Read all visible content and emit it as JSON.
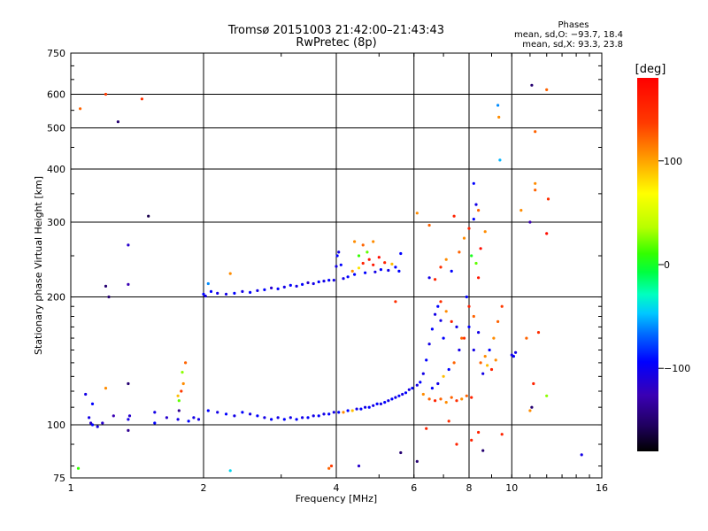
{
  "title": {
    "line1": "Tromsø 20151003 21:42:00–21:43:43",
    "line2": "RwPretec (8p)"
  },
  "phase_stats": {
    "header": "Phases",
    "o_line": "mean, sd,O:  −93.7, 18.4",
    "x_line": "mean, sd,X:  93.3, 23.8"
  },
  "colorbar": {
    "label": "[deg]",
    "ticks": [
      {
        "value": 100,
        "label": "100"
      },
      {
        "value": 0,
        "label": "0"
      },
      {
        "value": -100,
        "label": "−100"
      }
    ],
    "range": [
      -180,
      180
    ]
  },
  "chart_data": {
    "type": "scatter",
    "title": "Tromsø 20151003 21:42:00–21:43:43",
    "subtitle": "RwPretec (8p)",
    "xlabel": "Frequency [MHz]",
    "ylabel": "Stationary phase Virtual Height [km]",
    "x_scale": "log",
    "y_scale": "log",
    "xlim": [
      1,
      16
    ],
    "ylim": [
      75,
      750
    ],
    "x_ticks": [
      {
        "value": 1,
        "label": "1"
      },
      {
        "value": 2,
        "label": "2"
      },
      {
        "value": 4,
        "label": "4"
      },
      {
        "value": 6,
        "label": "6"
      },
      {
        "value": 8,
        "label": "8"
      },
      {
        "value": 10,
        "label": "10"
      },
      {
        "value": 16,
        "label": "16"
      }
    ],
    "y_ticks": [
      {
        "value": 75,
        "label": "75"
      },
      {
        "value": 100,
        "label": "100"
      },
      {
        "value": 200,
        "label": "200"
      },
      {
        "value": 300,
        "label": "300"
      },
      {
        "value": 400,
        "label": "400"
      },
      {
        "value": 500,
        "label": "500"
      },
      {
        "value": 600,
        "label": "600"
      },
      {
        "value": 750,
        "label": "750"
      }
    ],
    "x_gridlines": [
      2,
      4,
      6,
      8,
      10
    ],
    "y_gridlines": [
      100,
      200,
      300,
      400,
      500,
      600
    ],
    "grid": true,
    "color_variable": "phase",
    "color_unit": "deg",
    "points": [
      {
        "x": 1.05,
        "y": 555,
        "c": 120
      },
      {
        "x": 1.2,
        "y": 600,
        "c": 130
      },
      {
        "x": 1.28,
        "y": 517,
        "c": -150
      },
      {
        "x": 1.45,
        "y": 585,
        "c": 140
      },
      {
        "x": 1.5,
        "y": 310,
        "c": -160
      },
      {
        "x": 1.35,
        "y": 265,
        "c": -120
      },
      {
        "x": 1.2,
        "y": 212,
        "c": -150
      },
      {
        "x": 1.22,
        "y": 200,
        "c": -150
      },
      {
        "x": 1.35,
        "y": 214,
        "c": -130
      },
      {
        "x": 1.08,
        "y": 118,
        "c": -110
      },
      {
        "x": 1.12,
        "y": 112,
        "c": -100
      },
      {
        "x": 1.1,
        "y": 104,
        "c": -110
      },
      {
        "x": 1.11,
        "y": 101,
        "c": -120
      },
      {
        "x": 1.12,
        "y": 100,
        "c": -100
      },
      {
        "x": 1.15,
        "y": 99,
        "c": -110
      },
      {
        "x": 1.18,
        "y": 101,
        "c": -120
      },
      {
        "x": 1.25,
        "y": 105,
        "c": -130
      },
      {
        "x": 1.35,
        "y": 103,
        "c": -110
      },
      {
        "x": 1.36,
        "y": 105,
        "c": -120
      },
      {
        "x": 1.35,
        "y": 97,
        "c": -140
      },
      {
        "x": 1.35,
        "y": 125,
        "c": -150
      },
      {
        "x": 1.2,
        "y": 122,
        "c": 110
      },
      {
        "x": 1.04,
        "y": 79,
        "c": 20
      },
      {
        "x": 1.55,
        "y": 101,
        "c": -100
      },
      {
        "x": 1.75,
        "y": 117,
        "c": 100
      },
      {
        "x": 1.76,
        "y": 114,
        "c": 30
      },
      {
        "x": 1.78,
        "y": 120,
        "c": 130
      },
      {
        "x": 1.8,
        "y": 125,
        "c": 110
      },
      {
        "x": 1.82,
        "y": 140,
        "c": 120
      },
      {
        "x": 1.79,
        "y": 133,
        "c": 40
      },
      {
        "x": 1.76,
        "y": 108,
        "c": -140
      },
      {
        "x": 1.9,
        "y": 104,
        "c": -110
      },
      {
        "x": 2.0,
        "y": 203,
        "c": -100
      },
      {
        "x": 2.02,
        "y": 201,
        "c": -110
      },
      {
        "x": 2.05,
        "y": 215,
        "c": -60
      },
      {
        "x": 2.08,
        "y": 206,
        "c": -100
      },
      {
        "x": 2.15,
        "y": 204,
        "c": -110
      },
      {
        "x": 2.25,
        "y": 203,
        "c": -110
      },
      {
        "x": 2.3,
        "y": 227,
        "c": 110
      },
      {
        "x": 2.35,
        "y": 204,
        "c": -100
      },
      {
        "x": 2.45,
        "y": 206,
        "c": -110
      },
      {
        "x": 2.55,
        "y": 205,
        "c": -100
      },
      {
        "x": 2.65,
        "y": 207,
        "c": -110
      },
      {
        "x": 2.75,
        "y": 208,
        "c": -100
      },
      {
        "x": 2.85,
        "y": 210,
        "c": -120
      },
      {
        "x": 2.95,
        "y": 209,
        "c": -100
      },
      {
        "x": 3.05,
        "y": 211,
        "c": -110
      },
      {
        "x": 3.15,
        "y": 213,
        "c": -100
      },
      {
        "x": 3.25,
        "y": 212,
        "c": -110
      },
      {
        "x": 3.35,
        "y": 214,
        "c": -100
      },
      {
        "x": 3.45,
        "y": 216,
        "c": -120
      },
      {
        "x": 3.55,
        "y": 215,
        "c": -110
      },
      {
        "x": 3.65,
        "y": 217,
        "c": -100
      },
      {
        "x": 3.75,
        "y": 218,
        "c": -110
      },
      {
        "x": 3.85,
        "y": 219,
        "c": -100
      },
      {
        "x": 3.95,
        "y": 219,
        "c": -110
      },
      {
        "x": 4.0,
        "y": 236,
        "c": -110
      },
      {
        "x": 4.02,
        "y": 250,
        "c": -100
      },
      {
        "x": 4.05,
        "y": 255,
        "c": -110
      },
      {
        "x": 4.1,
        "y": 238,
        "c": -100
      },
      {
        "x": 4.15,
        "y": 221,
        "c": -110
      },
      {
        "x": 4.25,
        "y": 223,
        "c": -100
      },
      {
        "x": 4.35,
        "y": 230,
        "c": 110
      },
      {
        "x": 4.4,
        "y": 226,
        "c": -100
      },
      {
        "x": 4.5,
        "y": 234,
        "c": 90
      },
      {
        "x": 4.6,
        "y": 240,
        "c": 150
      },
      {
        "x": 4.65,
        "y": 228,
        "c": -100
      },
      {
        "x": 4.75,
        "y": 245,
        "c": 160
      },
      {
        "x": 4.85,
        "y": 238,
        "c": 160
      },
      {
        "x": 4.9,
        "y": 229,
        "c": -110
      },
      {
        "x": 5.0,
        "y": 248,
        "c": 170
      },
      {
        "x": 5.05,
        "y": 232,
        "c": -100
      },
      {
        "x": 5.15,
        "y": 241,
        "c": 150
      },
      {
        "x": 5.25,
        "y": 231,
        "c": -110
      },
      {
        "x": 5.35,
        "y": 239,
        "c": 100
      },
      {
        "x": 5.45,
        "y": 235,
        "c": -100
      },
      {
        "x": 5.55,
        "y": 230,
        "c": -100
      },
      {
        "x": 5.6,
        "y": 253,
        "c": -100
      },
      {
        "x": 4.5,
        "y": 250,
        "c": 20
      },
      {
        "x": 4.6,
        "y": 265,
        "c": 120
      },
      {
        "x": 4.7,
        "y": 255,
        "c": 30
      },
      {
        "x": 4.85,
        "y": 270,
        "c": 110
      },
      {
        "x": 5.45,
        "y": 195,
        "c": 140
      },
      {
        "x": 4.4,
        "y": 270,
        "c": 110
      },
      {
        "x": 1.55,
        "y": 107,
        "c": -110
      },
      {
        "x": 1.65,
        "y": 104,
        "c": -120
      },
      {
        "x": 1.75,
        "y": 103,
        "c": -110
      },
      {
        "x": 1.85,
        "y": 102,
        "c": -100
      },
      {
        "x": 1.95,
        "y": 103,
        "c": -110
      },
      {
        "x": 2.05,
        "y": 108,
        "c": -100
      },
      {
        "x": 2.15,
        "y": 107,
        "c": -110
      },
      {
        "x": 2.25,
        "y": 106,
        "c": -100
      },
      {
        "x": 2.35,
        "y": 105,
        "c": -110
      },
      {
        "x": 2.45,
        "y": 107,
        "c": -100
      },
      {
        "x": 2.55,
        "y": 106,
        "c": -110
      },
      {
        "x": 2.65,
        "y": 105,
        "c": -100
      },
      {
        "x": 2.75,
        "y": 104,
        "c": -110
      },
      {
        "x": 2.85,
        "y": 103,
        "c": -100
      },
      {
        "x": 2.95,
        "y": 104,
        "c": -110
      },
      {
        "x": 3.05,
        "y": 103,
        "c": -100
      },
      {
        "x": 3.15,
        "y": 104,
        "c": -110
      },
      {
        "x": 3.25,
        "y": 103,
        "c": -100
      },
      {
        "x": 3.35,
        "y": 104,
        "c": -110
      },
      {
        "x": 3.45,
        "y": 104,
        "c": -100
      },
      {
        "x": 3.55,
        "y": 105,
        "c": -110
      },
      {
        "x": 3.65,
        "y": 105,
        "c": -100
      },
      {
        "x": 3.75,
        "y": 106,
        "c": -110
      },
      {
        "x": 3.85,
        "y": 106,
        "c": -100
      },
      {
        "x": 3.95,
        "y": 107,
        "c": -110
      },
      {
        "x": 4.05,
        "y": 107,
        "c": -100
      },
      {
        "x": 4.15,
        "y": 107,
        "c": 110
      },
      {
        "x": 4.25,
        "y": 108,
        "c": -100
      },
      {
        "x": 4.35,
        "y": 108,
        "c": 100
      },
      {
        "x": 4.45,
        "y": 109,
        "c": -110
      },
      {
        "x": 4.55,
        "y": 109,
        "c": -100
      },
      {
        "x": 4.65,
        "y": 110,
        "c": -110
      },
      {
        "x": 4.75,
        "y": 110,
        "c": -100
      },
      {
        "x": 4.85,
        "y": 111,
        "c": -110
      },
      {
        "x": 4.95,
        "y": 112,
        "c": -100
      },
      {
        "x": 5.05,
        "y": 112,
        "c": -110
      },
      {
        "x": 5.15,
        "y": 113,
        "c": -100
      },
      {
        "x": 5.25,
        "y": 114,
        "c": -110
      },
      {
        "x": 5.35,
        "y": 115,
        "c": -100
      },
      {
        "x": 5.45,
        "y": 116,
        "c": -110
      },
      {
        "x": 5.55,
        "y": 117,
        "c": -100
      },
      {
        "x": 5.65,
        "y": 118,
        "c": -110
      },
      {
        "x": 5.75,
        "y": 119,
        "c": -100
      },
      {
        "x": 5.85,
        "y": 121,
        "c": -110
      },
      {
        "x": 5.95,
        "y": 122,
        "c": -100
      },
      {
        "x": 6.1,
        "y": 124,
        "c": -110
      },
      {
        "x": 6.2,
        "y": 126,
        "c": -100
      },
      {
        "x": 6.3,
        "y": 132,
        "c": -110
      },
      {
        "x": 6.4,
        "y": 142,
        "c": -100
      },
      {
        "x": 6.5,
        "y": 155,
        "c": -110
      },
      {
        "x": 6.6,
        "y": 168,
        "c": -100
      },
      {
        "x": 6.7,
        "y": 182,
        "c": -110
      },
      {
        "x": 6.8,
        "y": 190,
        "c": -100
      },
      {
        "x": 6.9,
        "y": 176,
        "c": -110
      },
      {
        "x": 7.0,
        "y": 160,
        "c": -100
      },
      {
        "x": 6.3,
        "y": 118,
        "c": 110
      },
      {
        "x": 6.5,
        "y": 115,
        "c": 120
      },
      {
        "x": 6.7,
        "y": 114,
        "c": 150
      },
      {
        "x": 6.9,
        "y": 115,
        "c": 120
      },
      {
        "x": 7.1,
        "y": 113,
        "c": 110
      },
      {
        "x": 7.3,
        "y": 116,
        "c": 120
      },
      {
        "x": 7.5,
        "y": 114,
        "c": 140
      },
      {
        "x": 7.7,
        "y": 115,
        "c": 110
      },
      {
        "x": 7.9,
        "y": 117,
        "c": 120
      },
      {
        "x": 8.1,
        "y": 116,
        "c": 150
      },
      {
        "x": 6.6,
        "y": 122,
        "c": -100
      },
      {
        "x": 6.8,
        "y": 125,
        "c": -110
      },
      {
        "x": 7.0,
        "y": 130,
        "c": 100
      },
      {
        "x": 7.2,
        "y": 135,
        "c": -100
      },
      {
        "x": 7.4,
        "y": 140,
        "c": 120
      },
      {
        "x": 7.6,
        "y": 150,
        "c": -110
      },
      {
        "x": 7.8,
        "y": 160,
        "c": 140
      },
      {
        "x": 8.0,
        "y": 170,
        "c": -100
      },
      {
        "x": 8.2,
        "y": 180,
        "c": 120
      },
      {
        "x": 8.4,
        "y": 165,
        "c": -110
      },
      {
        "x": 6.9,
        "y": 195,
        "c": 140
      },
      {
        "x": 7.1,
        "y": 185,
        "c": 110
      },
      {
        "x": 7.3,
        "y": 175,
        "c": 150
      },
      {
        "x": 7.5,
        "y": 170,
        "c": -110
      },
      {
        "x": 7.7,
        "y": 160,
        "c": 120
      },
      {
        "x": 7.9,
        "y": 200,
        "c": -100
      },
      {
        "x": 8.0,
        "y": 190,
        "c": 150
      },
      {
        "x": 8.2,
        "y": 150,
        "c": -110
      },
      {
        "x": 8.5,
        "y": 140,
        "c": 120
      },
      {
        "x": 8.7,
        "y": 145,
        "c": 110
      },
      {
        "x": 8.9,
        "y": 150,
        "c": -100
      },
      {
        "x": 9.1,
        "y": 160,
        "c": 110
      },
      {
        "x": 9.3,
        "y": 175,
        "c": 120
      },
      {
        "x": 9.5,
        "y": 190,
        "c": 130
      },
      {
        "x": 8.6,
        "y": 132,
        "c": -110
      },
      {
        "x": 8.8,
        "y": 138,
        "c": 100
      },
      {
        "x": 9.0,
        "y": 135,
        "c": 150
      },
      {
        "x": 9.2,
        "y": 142,
        "c": 110
      },
      {
        "x": 10.1,
        "y": 145,
        "c": -100
      },
      {
        "x": 10.2,
        "y": 148,
        "c": -110
      },
      {
        "x": 6.5,
        "y": 222,
        "c": -110
      },
      {
        "x": 6.7,
        "y": 220,
        "c": 150
      },
      {
        "x": 6.9,
        "y": 235,
        "c": 140
      },
      {
        "x": 7.1,
        "y": 245,
        "c": 110
      },
      {
        "x": 7.3,
        "y": 230,
        "c": -100
      },
      {
        "x": 7.6,
        "y": 255,
        "c": 120
      },
      {
        "x": 7.8,
        "y": 275,
        "c": 110
      },
      {
        "x": 8.0,
        "y": 290,
        "c": 150
      },
      {
        "x": 8.2,
        "y": 305,
        "c": -100
      },
      {
        "x": 8.3,
        "y": 330,
        "c": -110
      },
      {
        "x": 8.2,
        "y": 370,
        "c": -100
      },
      {
        "x": 8.4,
        "y": 320,
        "c": 120
      },
      {
        "x": 8.1,
        "y": 250,
        "c": 10
      },
      {
        "x": 8.3,
        "y": 240,
        "c": 30
      },
      {
        "x": 8.5,
        "y": 260,
        "c": 170
      },
      {
        "x": 8.7,
        "y": 285,
        "c": 110
      },
      {
        "x": 8.4,
        "y": 222,
        "c": 160
      },
      {
        "x": 7.4,
        "y": 310,
        "c": 150
      },
      {
        "x": 6.1,
        "y": 315,
        "c": 110
      },
      {
        "x": 6.5,
        "y": 295,
        "c": 120
      },
      {
        "x": 9.3,
        "y": 565,
        "c": -60
      },
      {
        "x": 9.35,
        "y": 530,
        "c": 110
      },
      {
        "x": 9.4,
        "y": 420,
        "c": -50
      },
      {
        "x": 11.1,
        "y": 630,
        "c": -150
      },
      {
        "x": 12.0,
        "y": 615,
        "c": 120
      },
      {
        "x": 11.3,
        "y": 490,
        "c": 120
      },
      {
        "x": 11.3,
        "y": 370,
        "c": 110
      },
      {
        "x": 11.3,
        "y": 357,
        "c": 120
      },
      {
        "x": 12.1,
        "y": 340,
        "c": 140
      },
      {
        "x": 11.0,
        "y": 300,
        "c": -130
      },
      {
        "x": 10.5,
        "y": 320,
        "c": 110
      },
      {
        "x": 12.0,
        "y": 282,
        "c": 170
      },
      {
        "x": 12.0,
        "y": 117,
        "c": 40
      },
      {
        "x": 11.5,
        "y": 165,
        "c": 140
      },
      {
        "x": 11.2,
        "y": 125,
        "c": 150
      },
      {
        "x": 11.1,
        "y": 110,
        "c": -150
      },
      {
        "x": 10.8,
        "y": 160,
        "c": 120
      },
      {
        "x": 11.0,
        "y": 108,
        "c": 110
      },
      {
        "x": 14.4,
        "y": 85,
        "c": -110
      },
      {
        "x": 10.0,
        "y": 146,
        "c": -110
      },
      {
        "x": 2.3,
        "y": 78,
        "c": -40
      },
      {
        "x": 3.85,
        "y": 79,
        "c": 120
      },
      {
        "x": 3.9,
        "y": 80,
        "c": 130
      },
      {
        "x": 4.5,
        "y": 80,
        "c": -120
      },
      {
        "x": 5.6,
        "y": 86,
        "c": -150
      },
      {
        "x": 6.1,
        "y": 82,
        "c": -150
      },
      {
        "x": 7.5,
        "y": 90,
        "c": 150
      },
      {
        "x": 8.6,
        "y": 87,
        "c": -150
      },
      {
        "x": 8.4,
        "y": 96,
        "c": 150
      },
      {
        "x": 8.1,
        "y": 92,
        "c": 150
      },
      {
        "x": 7.2,
        "y": 102,
        "c": 140
      },
      {
        "x": 6.4,
        "y": 98,
        "c": 150
      },
      {
        "x": 9.5,
        "y": 95,
        "c": 150
      }
    ]
  }
}
